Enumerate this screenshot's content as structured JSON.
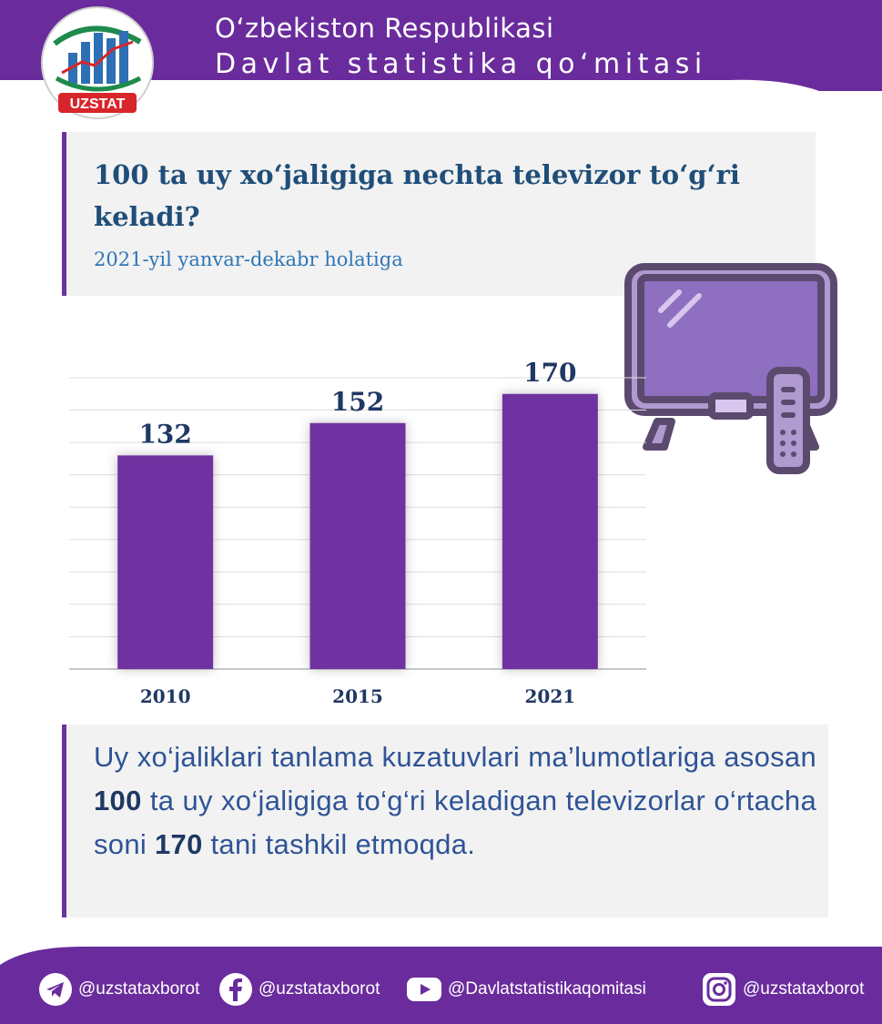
{
  "header": {
    "line1": "O‘zbekiston Respublikasi",
    "line2": "Davlat statistika qo‘mitasi",
    "logo_text": "UZSTAT"
  },
  "title": "100 ta uy xo‘jaligiga nechta televizor to‘g‘ri keladi?",
  "subtitle": "2021-yil yanvar-dekabr holatiga",
  "chart_data": {
    "type": "bar",
    "categories": [
      "2010",
      "2015",
      "2021"
    ],
    "values": [
      132,
      152,
      170
    ],
    "ylim": [
      0,
      180
    ],
    "grid": true,
    "bar_color": "#7030a0"
  },
  "info": {
    "part1": "Uy xo‘jaliklari tanlama kuzatuvlari ma’lumotlariga asosan ",
    "num1": "100",
    "part2": " ta uy xo‘jaligiga to‘g‘ri keladigan televizorlar o‘rtacha soni ",
    "num2": "170",
    "part3": " tani tashkil etmoqda."
  },
  "footer": {
    "telegram": "@uzstataxborot",
    "facebook": "@uzstataxborot",
    "youtube": "@Davlatstatistikaqomitasi",
    "instagram": "@uzstataxborot"
  },
  "colors": {
    "purple": "#6a2c9c",
    "title_blue": "#1f4e79",
    "subtitle_blue": "#2e75b6"
  }
}
